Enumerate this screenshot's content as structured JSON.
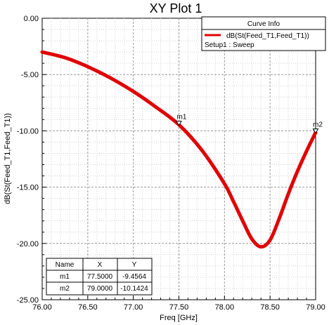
{
  "chart_data": {
    "type": "line",
    "title": "XY Plot 1",
    "xlabel": "Freq [GHz]",
    "ylabel": "dB(St(Feed_T1,Feed_T1))",
    "xlim": [
      76.0,
      79.0
    ],
    "ylim": [
      -25.0,
      0.0
    ],
    "x_ticks": [
      "76.00",
      "76.50",
      "77.00",
      "77.50",
      "78.00",
      "78.50",
      "79.00"
    ],
    "y_ticks": [
      "0.00",
      "-5.00",
      "-10.00",
      "-15.00",
      "-20.00",
      "-25.00"
    ],
    "grid": true,
    "legend_position": "top-right",
    "series": [
      {
        "name": "dB(St(Feed_T1,Feed_T1))",
        "color": "#e00000",
        "x": [
          76.0,
          76.25,
          76.5,
          76.75,
          77.0,
          77.25,
          77.5,
          77.75,
          78.0,
          78.1,
          78.2,
          78.3,
          78.4,
          78.5,
          78.6,
          78.7,
          78.8,
          78.9,
          79.0
        ],
        "y": [
          -3.0,
          -3.5,
          -4.3,
          -5.3,
          -6.5,
          -7.9,
          -9.46,
          -11.7,
          -14.7,
          -16.3,
          -18.0,
          -19.6,
          -20.3,
          -19.7,
          -17.8,
          -15.6,
          -13.6,
          -11.8,
          -10.14
        ]
      }
    ],
    "markers": [
      {
        "name": "m1",
        "x": 77.5,
        "y": -9.4564
      },
      {
        "name": "m2",
        "x": 79.0,
        "y": -10.1424
      }
    ]
  },
  "legend": {
    "header": "Curve Info",
    "entry": "dB(St(Feed_T1,Feed_T1))",
    "setup": "Setup1 : Sweep"
  },
  "marker_table": {
    "headers": [
      "Name",
      "X",
      "Y"
    ],
    "rows": [
      [
        "m1",
        "77.5000",
        "-9.4564"
      ],
      [
        "m2",
        "79.0000",
        "-10.1424"
      ]
    ]
  }
}
